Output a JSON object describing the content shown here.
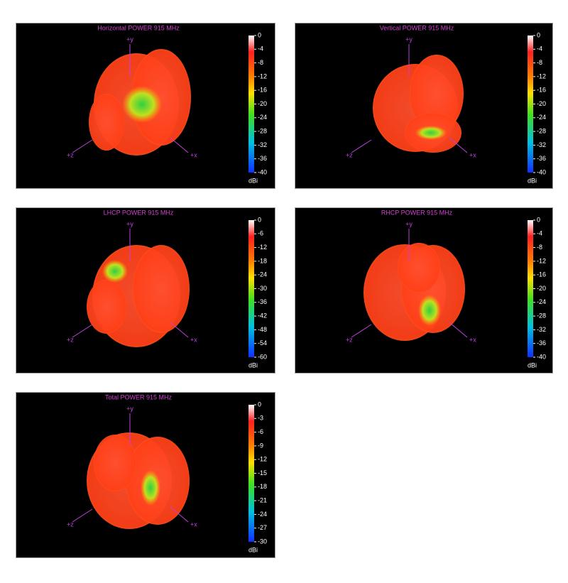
{
  "chart_data": [
    {
      "type": "radiation-pattern",
      "title": "Horizontal POWER 915  MHz",
      "clim": [
        -40,
        0
      ],
      "cticks": [
        0,
        -4,
        -8,
        -12,
        -16,
        -20,
        -24,
        -28,
        -32,
        -36,
        -40
      ],
      "colorbar_label": "dBi",
      "axis_labels": [
        "+y",
        "+x",
        "+z"
      ]
    },
    {
      "type": "radiation-pattern",
      "title": "Vertical POWER 915  MHz",
      "clim": [
        -40,
        0
      ],
      "cticks": [
        0,
        -4,
        -8,
        -12,
        -16,
        -20,
        -24,
        -28,
        -32,
        -36,
        -40
      ],
      "colorbar_label": "dBi",
      "axis_labels": [
        "+y",
        "+x",
        "+z"
      ]
    },
    {
      "type": "radiation-pattern",
      "title": "LHCP POWER 915  MHz",
      "clim": [
        -60,
        0
      ],
      "cticks": [
        0,
        -6,
        -12,
        -18,
        -24,
        -30,
        -36,
        -42,
        -48,
        -54,
        -60
      ],
      "colorbar_label": "dBi",
      "axis_labels": [
        "+y",
        "+x",
        "+z"
      ]
    },
    {
      "type": "radiation-pattern",
      "title": "RHCP POWER 915  MHz",
      "clim": [
        -40,
        0
      ],
      "cticks": [
        0,
        -4,
        -8,
        -12,
        -16,
        -20,
        -24,
        -28,
        -32,
        -36,
        -40
      ],
      "colorbar_label": "dBi",
      "axis_labels": [
        "+y",
        "+x",
        "+z"
      ]
    },
    {
      "type": "radiation-pattern",
      "title": "Total POWER 915  MHz",
      "clim": [
        -30,
        0
      ],
      "cticks": [
        0,
        -3,
        -6,
        -9,
        -12,
        -15,
        -18,
        -21,
        -24,
        -27,
        -30
      ],
      "colorbar_label": "dBi",
      "axis_labels": [
        "+y",
        "+x",
        "+z"
      ]
    }
  ]
}
